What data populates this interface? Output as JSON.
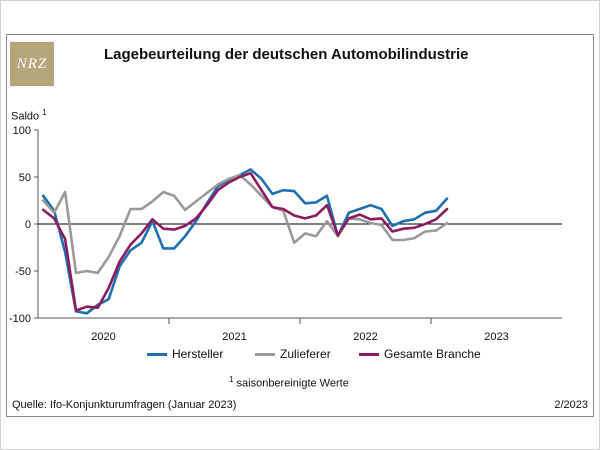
{
  "header": {
    "logo_text": "NRZ",
    "title": "Lagebeurteilung der deutschen Automobilindustrie"
  },
  "y_label": {
    "text": "Saldo",
    "footnote_mark": "1"
  },
  "legend": [
    {
      "label": "Hersteller",
      "color": "#1f6fb2"
    },
    {
      "label": "Zulieferer",
      "color": "#9a9a9a"
    },
    {
      "label": "Gesamte Branche",
      "color": "#8c1c5c"
    }
  ],
  "footnote": {
    "mark": "1",
    "text": "saisonbereinigte Werte"
  },
  "source": "Quelle: Ifo-Konjunkturumfragen (Januar 2023)",
  "issue": "2/2023",
  "colors": {
    "frame": "#8a8a8a",
    "axis": "#555555",
    "zero_line": "#000000"
  },
  "chart_data": {
    "type": "line",
    "title": "Lagebeurteilung der deutschen Automobilindustrie",
    "ylabel": "Saldo",
    "xlabel": "",
    "ylim": [
      -100,
      100
    ],
    "xlim": [
      2019.5,
      2023.5
    ],
    "yticks": [
      100,
      50,
      0,
      -50,
      -100
    ],
    "year_labels": [
      {
        "label": "2020",
        "x": 2020
      },
      {
        "label": "2021",
        "x": 2021
      },
      {
        "label": "2022",
        "x": 2022
      },
      {
        "label": "2023",
        "x": 2023
      }
    ],
    "year_boundaries": [
      2020.5,
      2021.5,
      2022.5
    ],
    "x_start": 2019.54,
    "x_step": 0.0833,
    "series": [
      {
        "name": "Hersteller",
        "color": "#1f6fb2",
        "values": [
          30,
          14,
          -30,
          -93,
          -95,
          -86,
          -80,
          -45,
          -28,
          -20,
          3,
          -26,
          -26,
          -13,
          3,
          22,
          40,
          47,
          52,
          58,
          48,
          32,
          36,
          35,
          22,
          23,
          30,
          -13,
          12,
          16,
          20,
          16,
          -2,
          3,
          5,
          12,
          14,
          27
        ]
      },
      {
        "name": "Zulieferer",
        "color": "#9a9a9a",
        "values": [
          25,
          12,
          34,
          -52,
          -50,
          -52,
          -35,
          -13,
          16,
          16,
          24,
          34,
          30,
          15,
          24,
          33,
          42,
          48,
          52,
          42,
          30,
          18,
          14,
          -20,
          -10,
          -13,
          3,
          -13,
          6,
          5,
          1,
          -1,
          -17,
          -17,
          -15,
          -8,
          -7,
          1
        ]
      },
      {
        "name": "Gesamte Branche",
        "color": "#8c1c5c",
        "values": [
          15,
          6,
          -16,
          -92,
          -88,
          -89,
          -68,
          -40,
          -22,
          -10,
          5,
          -5,
          -6,
          -2,
          6,
          20,
          36,
          44,
          50,
          54,
          36,
          18,
          16,
          9,
          6,
          9,
          20,
          -12,
          6,
          10,
          5,
          6,
          -8,
          -5,
          -4,
          0,
          5,
          16
        ]
      }
    ]
  }
}
